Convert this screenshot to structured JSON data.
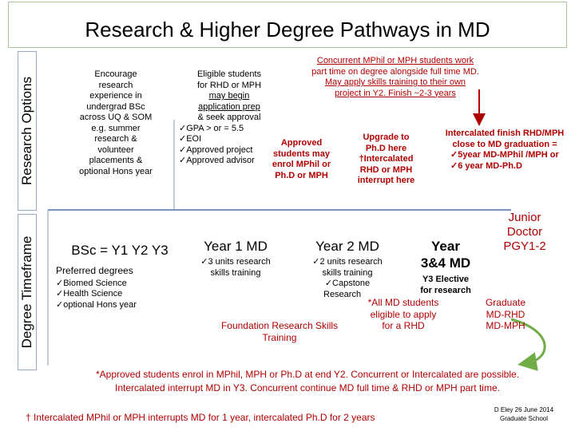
{
  "title": "Research & Higher Degree Pathways in MD",
  "side_labels": {
    "research_options": "Research Options",
    "degree_timeframe": "Degree Timeframe"
  },
  "col1": {
    "lines": [
      "Encourage",
      "research",
      "experience in",
      "undergrad BSc",
      "across UQ & SOM",
      "e.g. summer",
      "research &",
      "volunteer",
      "placements &",
      "optional Hons year"
    ]
  },
  "col2": {
    "lines": [
      "Eligible students",
      "for RHD or MPH",
      "may begin",
      "application prep",
      "& seek approval",
      "✓GPA > or = 5.5",
      "✓EOI",
      "✓Approved project",
      "✓Approved advisor"
    ]
  },
  "approved": {
    "lines": [
      "Approved",
      "students may",
      "enrol MPhil or",
      "Ph.D or MPH"
    ]
  },
  "concurrent": {
    "lines": [
      "Concurrent MPhil or MPH students work",
      "part time on degree alongside full time MD.",
      "May apply skills training to their own",
      "project in Y2. Finish ~2-3 years"
    ]
  },
  "upgrade": {
    "lines": [
      "Upgrade to",
      "Ph.D  here",
      "†Intercalated",
      "RHD or MPH",
      "interrupt here"
    ]
  },
  "intercalated_finish": {
    "lines": [
      "Intercalated finish RHD/MPH",
      "close to MD graduation =",
      "✓5year MD-MPhil /MPH or",
      "✓6 year MD-Ph.D"
    ]
  },
  "bsc": {
    "heading": "BSc = Y1 Y2 Y3",
    "preferred": "Preferred degrees",
    "items": [
      "✓Biomed Science",
      "✓Health Science",
      "✓optional Hons year"
    ]
  },
  "year1": {
    "heading": "Year 1 MD",
    "lines": [
      "✓3 units research",
      "skills training"
    ]
  },
  "year2": {
    "heading": "Year 2 MD",
    "lines": [
      "✓2 units research",
      "skills training",
      "✓Capstone",
      "Research"
    ]
  },
  "year34": {
    "heading_lines": [
      "Year",
      "3&4 MD"
    ],
    "elective_lines": [
      "Y3 Elective",
      "for research"
    ]
  },
  "junior_doctor": {
    "lines": [
      "Junior",
      "Doctor",
      "PGY1-2"
    ]
  },
  "foundation": {
    "lines": [
      "Foundation Research Skills",
      "Training"
    ]
  },
  "all_md": {
    "lines": [
      "*All MD students",
      "eligible to apply",
      "for a RHD"
    ]
  },
  "graduate": {
    "lines": [
      "Graduate",
      "MD-RHD",
      "MD-MPH"
    ]
  },
  "footnote": {
    "line1": "*Approved students enrol in MPhil, MPH or Ph.D at end Y2.  Concurrent or Intercalated are possible.",
    "line2": "Intercalated  interrupt MD in Y3. Concurrent continue MD full time & RHD or MPH part time."
  },
  "dagger_note": "† Intercalated MPhil or MPH interrupts MD for 1 year, intercalated Ph.D for 2 years",
  "credit": {
    "lines": [
      "D Eley 26 June 2014",
      "Graduate School"
    ]
  },
  "colors": {
    "accent_red": "#b00000",
    "accent_green": "#70ad47",
    "line_blue": "#4a6fa5"
  }
}
